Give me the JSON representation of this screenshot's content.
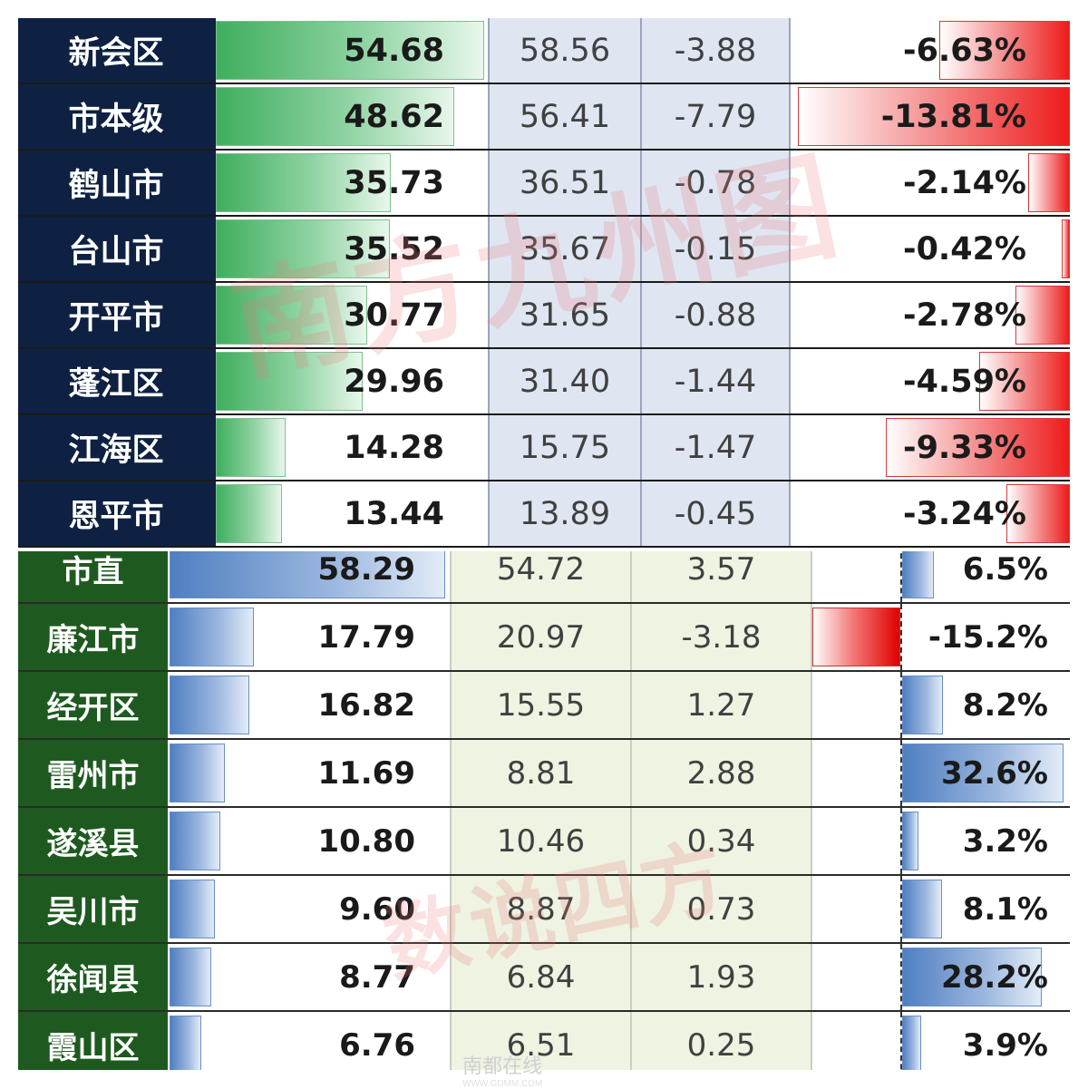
{
  "panel1": {
    "colors": {
      "name_bg": "#0e2142",
      "bar_positive": "#3fae5e",
      "bar_negative": "#ee1b1b",
      "mid_bg": "#dfe6f2"
    },
    "rows": [
      {
        "name": "新会区",
        "value": "54.68",
        "prev": "58.56",
        "change": "-3.88",
        "pct": "-6.63%",
        "value_num": 54.68,
        "pct_num": -6.63
      },
      {
        "name": "市本级",
        "value": "48.62",
        "prev": "56.41",
        "change": "-7.79",
        "pct": "-13.81%",
        "value_num": 48.62,
        "pct_num": -13.81
      },
      {
        "name": "鹤山市",
        "value": "35.73",
        "prev": "36.51",
        "change": "-0.78",
        "pct": "-2.14%",
        "value_num": 35.73,
        "pct_num": -2.14
      },
      {
        "name": "台山市",
        "value": "35.52",
        "prev": "35.67",
        "change": "-0.15",
        "pct": "-0.42%",
        "value_num": 35.52,
        "pct_num": -0.42
      },
      {
        "name": "开平市",
        "value": "30.77",
        "prev": "31.65",
        "change": "-0.88",
        "pct": "-2.78%",
        "value_num": 30.77,
        "pct_num": -2.78
      },
      {
        "name": "蓬江区",
        "value": "29.96",
        "prev": "31.40",
        "change": "-1.44",
        "pct": "-4.59%",
        "value_num": 29.96,
        "pct_num": -4.59
      },
      {
        "name": "江海区",
        "value": "14.28",
        "prev": "15.75",
        "change": "-1.47",
        "pct": "-9.33%",
        "value_num": 14.28,
        "pct_num": -9.33
      },
      {
        "name": "恩平市",
        "value": "13.44",
        "prev": "13.89",
        "change": "-0.45",
        "pct": "-3.24%",
        "value_num": 13.44,
        "pct_num": -3.24
      }
    ]
  },
  "panel2": {
    "colors": {
      "name_bg": "#1e5a20",
      "bar_positive": "#4f7fc1",
      "bar_negative": "#e00000",
      "mid_bg": "#eef3e2"
    },
    "rows": [
      {
        "name": "市直",
        "value": "58.29",
        "prev": "54.72",
        "change": "3.57",
        "pct": "6.5%",
        "value_num": 58.29,
        "pct_num": 6.5
      },
      {
        "name": "廉江市",
        "value": "17.79",
        "prev": "20.97",
        "change": "-3.18",
        "pct": "-15.2%",
        "value_num": 17.79,
        "pct_num": -15.2
      },
      {
        "name": "经开区",
        "value": "16.82",
        "prev": "15.55",
        "change": "1.27",
        "pct": "8.2%",
        "value_num": 16.82,
        "pct_num": 8.2
      },
      {
        "name": "雷州市",
        "value": "11.69",
        "prev": "8.81",
        "change": "2.88",
        "pct": "32.6%",
        "value_num": 11.69,
        "pct_num": 32.6
      },
      {
        "name": "遂溪县",
        "value": "10.80",
        "prev": "10.46",
        "change": "0.34",
        "pct": "3.2%",
        "value_num": 10.8,
        "pct_num": 3.2
      },
      {
        "name": "吴川市",
        "value": "9.60",
        "prev": "8.87",
        "change": "0.73",
        "pct": "8.1%",
        "value_num": 9.6,
        "pct_num": 8.1
      },
      {
        "name": "徐闻县",
        "value": "8.77",
        "prev": "6.84",
        "change": "1.93",
        "pct": "28.2%",
        "value_num": 8.77,
        "pct_num": 28.2
      },
      {
        "name": "霞山区",
        "value": "6.76",
        "prev": "6.51",
        "change": "0.25",
        "pct": "3.9%",
        "value_num": 6.76,
        "pct_num": 3.9
      }
    ]
  },
  "watermarks": {
    "top": "南方九州图",
    "bottom": "数说四方",
    "corner": "南都在线",
    "corner_url": "WWW.GDMM.COM"
  }
}
